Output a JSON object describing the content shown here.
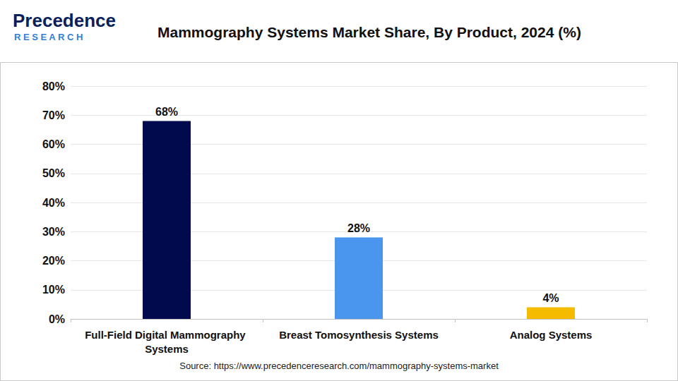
{
  "chart_data": {
    "type": "bar",
    "title": "Mammography Systems Market Share, By Product, 2024 (%)",
    "categories": [
      "Full-Field Digital Mammography Systems",
      "Breast Tomosynthesis Systems",
      "Analog Systems"
    ],
    "values": [
      68,
      28,
      4
    ],
    "value_labels": [
      "68%",
      "28%",
      "4%"
    ],
    "colors": [
      "#020a4e",
      "#4a96ef",
      "#f5bb00"
    ],
    "ylim": [
      0,
      80
    ],
    "yticks": [
      {
        "value": 0,
        "label": "0%"
      },
      {
        "value": 10,
        "label": "10%"
      },
      {
        "value": 20,
        "label": "20%"
      },
      {
        "value": 30,
        "label": "30%"
      },
      {
        "value": 40,
        "label": "40%"
      },
      {
        "value": 50,
        "label": "50%"
      },
      {
        "value": 60,
        "label": "60%"
      },
      {
        "value": 70,
        "label": "70%"
      },
      {
        "value": 80,
        "label": "80%"
      }
    ],
    "grid": true,
    "data_labels": true,
    "annotations": [
      "Precedence",
      "RESEARCH",
      "Source: https://www.precedenceresearch.com/mammography-systems-market"
    ]
  }
}
